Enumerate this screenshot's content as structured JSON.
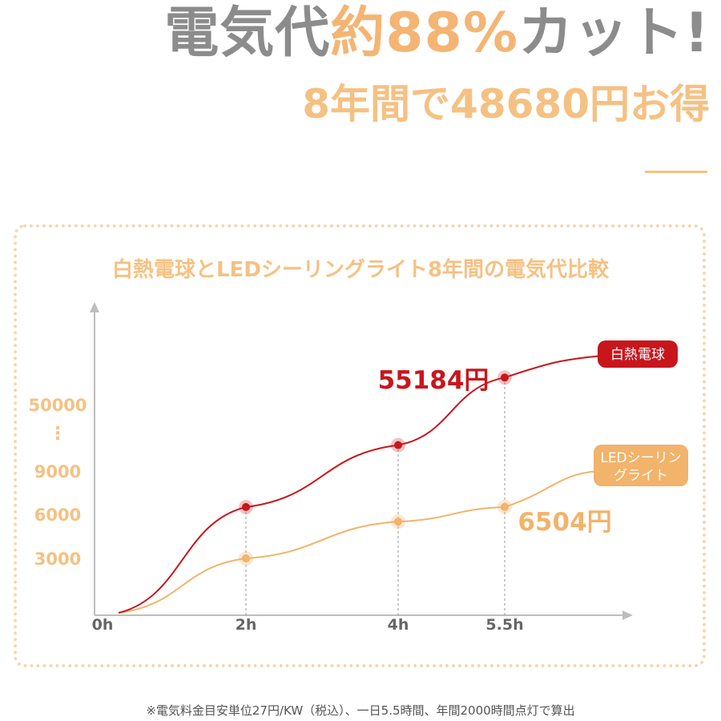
{
  "header": {
    "headline_a": "電気代",
    "headline_b": "約88%",
    "headline_c": "カット!",
    "subheadline": "8年間で48680円お得"
  },
  "footnote": "※電気料金目安単位27円/KW（税込）、一日5.5時間、年間2000時間点灯で算出",
  "colors": {
    "incandescent": "#c8161d",
    "led": "#f2b36b",
    "axis": "#bdbdbd",
    "tick_y": "#f5c183",
    "tick_x": "#666666"
  },
  "chart_data": {
    "type": "line",
    "title": "白熱電球とLEDシーリングライト8年間の電気代比較",
    "x_ticks": [
      "0h",
      "2h",
      "4h",
      "5.5h"
    ],
    "y_ticks": [
      "3000",
      "6000",
      "9000",
      "50000"
    ],
    "y_ellipsis": "⋮",
    "grid": false,
    "legend_placement": "end-of-lines",
    "series": [
      {
        "name": "白熱電球",
        "points": [
          [
            0,
            0
          ],
          [
            2,
            6504
          ],
          [
            4,
            25000
          ],
          [
            5.5,
            55184
          ]
        ]
      },
      {
        "name": "LEDシーリングライト",
        "points": [
          [
            0,
            0
          ],
          [
            2,
            3000
          ],
          [
            4,
            5500
          ],
          [
            5.5,
            6504
          ]
        ]
      }
    ],
    "annotations": [
      {
        "series": 0,
        "text": "55184円"
      },
      {
        "series": 1,
        "text": "6504円"
      }
    ]
  }
}
